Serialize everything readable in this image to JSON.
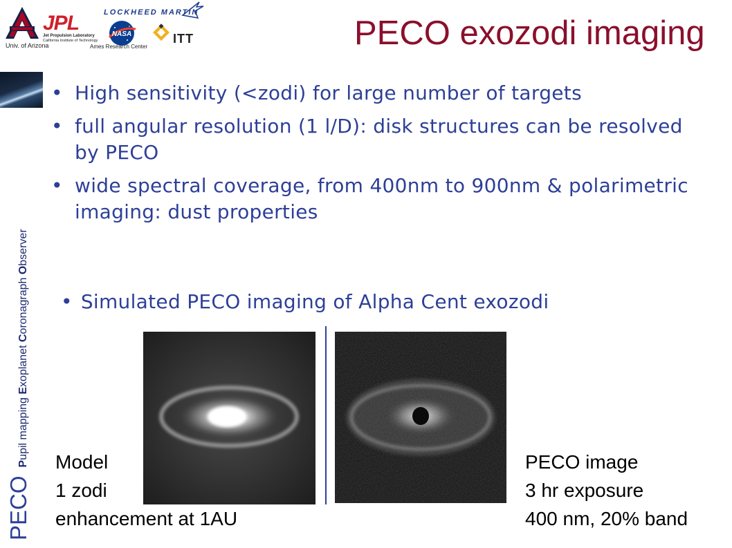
{
  "header": {
    "logos": {
      "ua_label": "Univ. of Arizona",
      "jpl_name": "JPL",
      "jpl_line1": "Jet Propulsion Laboratory",
      "jpl_line2": "California Institute of Technology",
      "lockheed": "LOCKHEED MARTIN",
      "nasa_text": "NASA",
      "nasa_caption": "Ames Research Center",
      "itt": "ITT"
    },
    "title": "PECO exozodi imaging"
  },
  "side_label": {
    "acronym": "PECO",
    "words": [
      {
        "initial": "P",
        "rest": "upil mapping "
      },
      {
        "initial": "E",
        "rest": "xoplanet "
      },
      {
        "initial": "C",
        "rest": "oronagraph "
      },
      {
        "initial": "O",
        "rest": "bserver"
      }
    ]
  },
  "bullets": [
    "High sensitivity (<zodi) for large number of targets",
    "full angular resolution (1 l/D): disk structures can be resolved by PECO",
    "wide spectral coverage, from 400nm to 900nm & polarimetric imaging: dust properties"
  ],
  "simulation": {
    "heading": "Simulated PECO imaging of Alpha Cent exozodi",
    "model_caption": [
      "Model",
      "1 zodi",
      "enhancement at 1AU"
    ],
    "peco_caption": [
      "PECO image",
      "3 hr exposure",
      "400 nm, 20% band"
    ]
  },
  "colors": {
    "title": "#8b0f2b",
    "bullet_text": "#2d3f97",
    "divider": "#2d3f97"
  }
}
